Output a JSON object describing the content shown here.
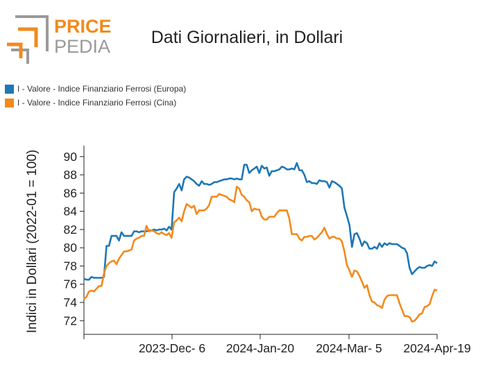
{
  "brand": {
    "name_top": "PRICE",
    "name_bottom": "PEDIA",
    "top_color": "#f28a1e",
    "bottom_color": "#9a9a9a"
  },
  "chart_data": {
    "type": "line",
    "title": "Dati Giornalieri, in Dollari",
    "ylabel": "Indici in Dollari (2022-01 = 100)",
    "xlabel": "",
    "ylim": [
      70.5,
      91.2
    ],
    "yticks": [
      72,
      74,
      76,
      78,
      80,
      82,
      84,
      86,
      88,
      90
    ],
    "xticks": [
      "2023-Dec- 6",
      "2024-Jan-20",
      "2024-Mar- 5",
      "2024-Apr-19"
    ],
    "x_range_days": [
      -120,
      0
    ],
    "grid": false,
    "legend_position": "top-left",
    "series": [
      {
        "name": "I - Valore - Indice Finanziario Ferrosi (Europa)",
        "color": "#1f77b4",
        "points": [
          [
            -120,
            76.6
          ],
          [
            -119,
            76.5
          ],
          [
            -118,
            76.5
          ],
          [
            -117,
            76.8
          ],
          [
            -116,
            76.7
          ],
          [
            -115,
            76.7
          ],
          [
            -114,
            76.7
          ],
          [
            -113,
            76.7
          ],
          [
            -112,
            76.8
          ],
          [
            -111,
            80.2
          ],
          [
            -110,
            80.2
          ],
          [
            -109,
            81.3
          ],
          [
            -108,
            81.3
          ],
          [
            -107,
            81.3
          ],
          [
            -106,
            80.8
          ],
          [
            -105,
            81.7
          ],
          [
            -104,
            81.3
          ],
          [
            -103,
            81.3
          ],
          [
            -102,
            81.3
          ],
          [
            -101,
            81.3
          ],
          [
            -100,
            81.8
          ],
          [
            -99,
            81.8
          ],
          [
            -98,
            81.7
          ],
          [
            -97,
            81.8
          ],
          [
            -96,
            81.8
          ],
          [
            -95,
            81.8
          ],
          [
            -94,
            81.9
          ],
          [
            -93,
            81.9
          ],
          [
            -92,
            82.0
          ],
          [
            -91,
            81.9
          ],
          [
            -90,
            82.0
          ],
          [
            -89,
            82.0
          ],
          [
            -88,
            82.1
          ],
          [
            -87,
            81.9
          ],
          [
            -86,
            82.3
          ],
          [
            -85,
            82.0
          ],
          [
            -84,
            86.1
          ],
          [
            -83,
            86.5
          ],
          [
            -82,
            87.0
          ],
          [
            -81,
            86.3
          ],
          [
            -80,
            87.5
          ],
          [
            -79,
            87.8
          ],
          [
            -78,
            87.7
          ],
          [
            -77,
            87.5
          ],
          [
            -76,
            87.3
          ],
          [
            -75,
            87.0
          ],
          [
            -74,
            86.8
          ],
          [
            -73,
            87.3
          ],
          [
            -72,
            87.0
          ],
          [
            -71,
            87.0
          ],
          [
            -70,
            86.9
          ],
          [
            -69,
            87.0
          ],
          [
            -68,
            87.2
          ],
          [
            -67,
            87.2
          ],
          [
            -66,
            87.3
          ],
          [
            -65,
            87.4
          ],
          [
            -64,
            87.5
          ],
          [
            -63,
            87.5
          ],
          [
            -62,
            87.6
          ],
          [
            -61,
            87.6
          ],
          [
            -60,
            87.5
          ],
          [
            -59,
            87.6
          ],
          [
            -58,
            87.5
          ],
          [
            -57,
            87.5
          ],
          [
            -56,
            89.1
          ],
          [
            -55,
            89.1
          ],
          [
            -54,
            88.2
          ],
          [
            -53,
            88.5
          ],
          [
            -52,
            88.7
          ],
          [
            -51,
            88.9
          ],
          [
            -50,
            88.2
          ],
          [
            -49,
            89.0
          ],
          [
            -48,
            88.7
          ],
          [
            -47,
            88.8
          ],
          [
            -46,
            87.9
          ],
          [
            -45,
            88.4
          ],
          [
            -44,
            88.4
          ],
          [
            -43,
            88.5
          ],
          [
            -42,
            88.6
          ],
          [
            -41,
            88.9
          ],
          [
            -40,
            88.8
          ],
          [
            -39,
            88.6
          ],
          [
            -38,
            88.6
          ],
          [
            -37,
            88.7
          ],
          [
            -36,
            88.6
          ],
          [
            -35,
            89.3
          ],
          [
            -34,
            88.5
          ],
          [
            -33,
            88.5
          ],
          [
            -32,
            88.0
          ],
          [
            -31,
            87.2
          ],
          [
            -30,
            87.3
          ],
          [
            -29,
            87.1
          ],
          [
            -28,
            87.1
          ],
          [
            -27,
            87.0
          ],
          [
            -26,
            87.4
          ],
          [
            -25,
            87.3
          ],
          [
            -24,
            87.3
          ],
          [
            -23,
            87.2
          ],
          [
            -22,
            86.6
          ],
          [
            -21,
            87.3
          ],
          [
            -20,
            87.2
          ],
          [
            -19,
            87.0
          ],
          [
            -18,
            86.8
          ],
          [
            -17,
            86.5
          ],
          [
            -16,
            84.4
          ],
          [
            -15,
            83.5
          ],
          [
            -14,
            82.5
          ],
          [
            -13,
            80.1
          ],
          [
            -12,
            81.5
          ],
          [
            -11,
            81.6
          ],
          [
            -10,
            81.0
          ],
          [
            -9,
            80.2
          ],
          [
            -8,
            80.7
          ],
          [
            -7,
            80.5
          ],
          [
            -6,
            79.9
          ],
          [
            -5,
            79.9
          ],
          [
            -4,
            80.1
          ],
          [
            -3,
            79.9
          ],
          [
            -2,
            80.5
          ],
          [
            -1,
            80.1
          ],
          [
            0,
            80.5
          ],
          [
            1,
            80.3
          ],
          [
            2,
            80.5
          ],
          [
            3,
            80.4
          ],
          [
            4,
            80.4
          ],
          [
            5,
            80.4
          ],
          [
            6,
            80.2
          ],
          [
            7,
            80.0
          ],
          [
            8,
            79.9
          ],
          [
            9,
            79.4
          ],
          [
            10,
            77.8
          ],
          [
            11,
            77.1
          ],
          [
            12,
            77.4
          ],
          [
            13,
            77.7
          ],
          [
            14,
            77.9
          ],
          [
            15,
            77.8
          ],
          [
            16,
            77.8
          ],
          [
            17,
            78.0
          ],
          [
            18,
            78.1
          ],
          [
            19,
            78.0
          ],
          [
            20,
            78.5
          ],
          [
            21,
            78.3
          ]
        ]
      },
      {
        "name": "I - Valore - Indice Finanziario Ferrosi (Cina)",
        "color": "#f28a1e",
        "points": [
          [
            -120,
            74.4
          ],
          [
            -119,
            74.6
          ],
          [
            -118,
            75.2
          ],
          [
            -117,
            75.3
          ],
          [
            -116,
            75.2
          ],
          [
            -115,
            75.5
          ],
          [
            -114,
            75.8
          ],
          [
            -113,
            75.8
          ],
          [
            -112,
            77.2
          ],
          [
            -111,
            78.0
          ],
          [
            -110,
            78.3
          ],
          [
            -109,
            78.5
          ],
          [
            -108,
            78.6
          ],
          [
            -107,
            78.2
          ],
          [
            -106,
            78.8
          ],
          [
            -105,
            79.2
          ],
          [
            -104,
            79.6
          ],
          [
            -103,
            79.6
          ],
          [
            -102,
            79.7
          ],
          [
            -101,
            79.8
          ],
          [
            -100,
            80.8
          ],
          [
            -99,
            81.0
          ],
          [
            -98,
            81.1
          ],
          [
            -97,
            81.3
          ],
          [
            -96,
            81.3
          ],
          [
            -95,
            82.4
          ],
          [
            -94,
            81.8
          ],
          [
            -93,
            81.9
          ],
          [
            -92,
            81.8
          ],
          [
            -91,
            81.6
          ],
          [
            -90,
            81.5
          ],
          [
            -89,
            81.7
          ],
          [
            -88,
            81.5
          ],
          [
            -87,
            81.4
          ],
          [
            -86,
            81.6
          ],
          [
            -85,
            81.1
          ],
          [
            -84,
            82.8
          ],
          [
            -83,
            83.0
          ],
          [
            -82,
            83.3
          ],
          [
            -81,
            82.9
          ],
          [
            -80,
            84.0
          ],
          [
            -79,
            84.8
          ],
          [
            -78,
            84.6
          ],
          [
            -77,
            84.4
          ],
          [
            -76,
            84.6
          ],
          [
            -75,
            83.7
          ],
          [
            -74,
            84.1
          ],
          [
            -73,
            84.1
          ],
          [
            -72,
            84.1
          ],
          [
            -71,
            84.3
          ],
          [
            -70,
            84.7
          ],
          [
            -69,
            85.6
          ],
          [
            -68,
            85.6
          ],
          [
            -67,
            85.6
          ],
          [
            -66,
            85.9
          ],
          [
            -65,
            85.8
          ],
          [
            -64,
            85.7
          ],
          [
            -63,
            85.6
          ],
          [
            -62,
            85.3
          ],
          [
            -61,
            85.2
          ],
          [
            -60,
            85.0
          ],
          [
            -59,
            86.7
          ],
          [
            -58,
            86.5
          ],
          [
            -57,
            85.8
          ],
          [
            -56,
            85.6
          ],
          [
            -55,
            85.2
          ],
          [
            -54,
            85.0
          ],
          [
            -53,
            84.0
          ],
          [
            -52,
            84.3
          ],
          [
            -51,
            84.2
          ],
          [
            -50,
            84.2
          ],
          [
            -49,
            83.4
          ],
          [
            -48,
            83.1
          ],
          [
            -47,
            83.1
          ],
          [
            -46,
            83.4
          ],
          [
            -45,
            83.4
          ],
          [
            -44,
            83.4
          ],
          [
            -43,
            83.8
          ],
          [
            -42,
            84.1
          ],
          [
            -41,
            84.1
          ],
          [
            -40,
            84.1
          ],
          [
            -39,
            84.1
          ],
          [
            -38,
            83.2
          ],
          [
            -37,
            81.5
          ],
          [
            -36,
            81.5
          ],
          [
            -35,
            81.5
          ],
          [
            -34,
            81.0
          ],
          [
            -33,
            80.8
          ],
          [
            -32,
            81.2
          ],
          [
            -31,
            81.2
          ],
          [
            -30,
            81.3
          ],
          [
            -29,
            81.3
          ],
          [
            -28,
            80.9
          ],
          [
            -27,
            81.1
          ],
          [
            -26,
            81.4
          ],
          [
            -25,
            81.7
          ],
          [
            -24,
            82.2
          ],
          [
            -23,
            81.5
          ],
          [
            -22,
            81.0
          ],
          [
            -21,
            81.2
          ],
          [
            -20,
            81.2
          ],
          [
            -19,
            81.0
          ],
          [
            -18,
            81.0
          ],
          [
            -17,
            80.7
          ],
          [
            -16,
            79.6
          ],
          [
            -15,
            78.1
          ],
          [
            -14,
            77.5
          ],
          [
            -13,
            76.8
          ],
          [
            -12,
            77.5
          ],
          [
            -11,
            77.4
          ],
          [
            -10,
            76.9
          ],
          [
            -9,
            76.3
          ],
          [
            -8,
            75.6
          ],
          [
            -7,
            75.9
          ],
          [
            -6,
            74.8
          ],
          [
            -5,
            74.1
          ],
          [
            -4,
            74.0
          ],
          [
            -3,
            73.7
          ],
          [
            -2,
            73.6
          ],
          [
            -1,
            73.4
          ],
          [
            0,
            74.3
          ],
          [
            1,
            74.7
          ],
          [
            2,
            74.8
          ],
          [
            3,
            74.8
          ],
          [
            4,
            74.8
          ],
          [
            5,
            74.8
          ],
          [
            6,
            73.9
          ],
          [
            7,
            73.2
          ],
          [
            8,
            72.5
          ],
          [
            9,
            72.5
          ],
          [
            10,
            72.4
          ],
          [
            11,
            71.9
          ],
          [
            12,
            72.0
          ],
          [
            13,
            72.3
          ],
          [
            14,
            72.7
          ],
          [
            15,
            72.8
          ],
          [
            16,
            73.5
          ],
          [
            17,
            73.6
          ],
          [
            18,
            73.8
          ],
          [
            19,
            74.7
          ],
          [
            20,
            75.4
          ],
          [
            21,
            75.3
          ]
        ]
      }
    ]
  }
}
